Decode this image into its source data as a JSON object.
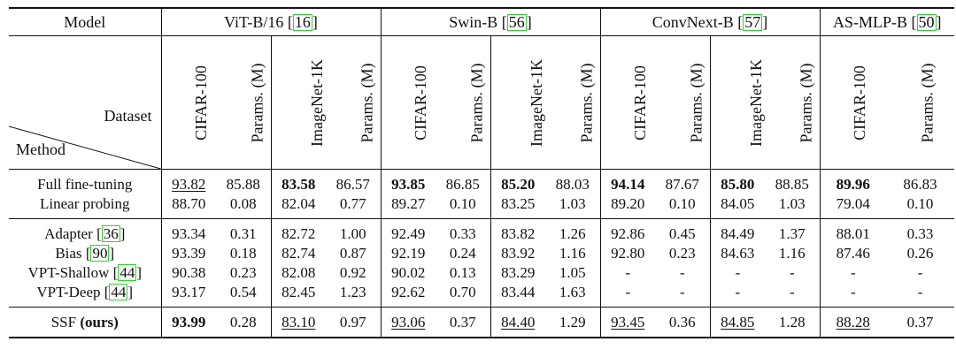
{
  "header": {
    "model_label": "Model",
    "dataset_label": "Dataset",
    "method_label": "Method",
    "models": [
      {
        "name": "ViT-B/16",
        "ref": "16"
      },
      {
        "name": "Swin-B",
        "ref": "56"
      },
      {
        "name": "ConvNext-B",
        "ref": "57"
      },
      {
        "name": "AS-MLP-B",
        "ref": "50"
      }
    ],
    "columns": [
      "CIFAR-100",
      "Params. (M)",
      "ImageNet-1K",
      "Params. (M)",
      "CIFAR-100",
      "Params. (M)",
      "ImageNet-1K",
      "Params. (M)",
      "CIFAR-100",
      "Params. (M)",
      "ImageNet-1K",
      "Params. (M)",
      "CIFAR-100",
      "Params. (M)"
    ]
  },
  "groups": [
    {
      "rows": [
        {
          "method": "Full fine-tuning",
          "ref": "",
          "values": [
            "93.82",
            "85.88",
            "83.58",
            "86.57",
            "93.85",
            "86.85",
            "85.20",
            "88.03",
            "94.14",
            "87.67",
            "85.80",
            "88.85",
            "89.96",
            "86.83"
          ],
          "bold": [
            2,
            4,
            6,
            8,
            10,
            12
          ],
          "underline": [
            0
          ]
        },
        {
          "method": "Linear probing",
          "ref": "",
          "values": [
            "88.70",
            "0.08",
            "82.04",
            "0.77",
            "89.27",
            "0.10",
            "83.25",
            "1.03",
            "89.20",
            "0.10",
            "84.05",
            "1.03",
            "79.04",
            "0.10"
          ],
          "bold": [],
          "underline": []
        }
      ]
    },
    {
      "rows": [
        {
          "method": "Adapter",
          "ref": "36",
          "values": [
            "93.34",
            "0.31",
            "82.72",
            "1.00",
            "92.49",
            "0.33",
            "83.82",
            "1.26",
            "92.86",
            "0.45",
            "84.49",
            "1.37",
            "88.01",
            "0.33"
          ],
          "bold": [],
          "underline": []
        },
        {
          "method": "Bias",
          "ref": "90",
          "values": [
            "93.39",
            "0.18",
            "82.74",
            "0.87",
            "92.19",
            "0.24",
            "83.92",
            "1.16",
            "92.80",
            "0.23",
            "84.63",
            "1.16",
            "87.46",
            "0.26"
          ],
          "bold": [],
          "underline": []
        },
        {
          "method": "VPT-Shallow",
          "ref": "44",
          "values": [
            "90.38",
            "0.23",
            "82.08",
            "0.92",
            "90.02",
            "0.13",
            "83.29",
            "1.05",
            "-",
            "-",
            "-",
            "-",
            "-",
            "-"
          ],
          "bold": [],
          "underline": []
        },
        {
          "method": "VPT-Deep",
          "ref": "44",
          "values": [
            "93.17",
            "0.54",
            "82.45",
            "1.23",
            "92.62",
            "0.70",
            "83.44",
            "1.63",
            "-",
            "-",
            "-",
            "-",
            "-",
            "-"
          ],
          "bold": [],
          "underline": []
        }
      ]
    },
    {
      "rows": [
        {
          "method": "SSF",
          "method_suffix": "(ours)",
          "ref": "",
          "values": [
            "93.99",
            "0.28",
            "83.10",
            "0.97",
            "93.06",
            "0.37",
            "84.40",
            "1.29",
            "93.45",
            "0.36",
            "84.85",
            "1.28",
            "88.28",
            "0.37"
          ],
          "bold": [
            0
          ],
          "underline": [
            2,
            4,
            6,
            8,
            10,
            12
          ]
        }
      ]
    }
  ]
}
